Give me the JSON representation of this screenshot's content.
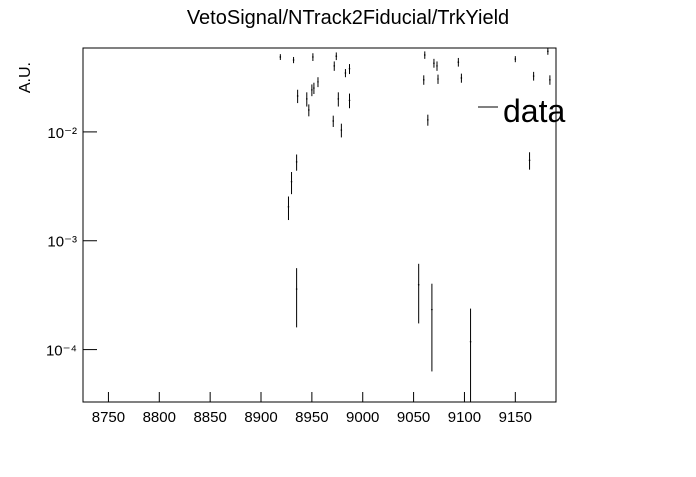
{
  "chart_data": {
    "type": "scatter",
    "title": "VetoSignal/NTrack2Fiducial/TrkYield",
    "y_label": "A.U.",
    "log_y": true,
    "legend_position": "upper right",
    "xlim": [
      8725,
      9190
    ],
    "xticks": [
      8750,
      8800,
      8850,
      8900,
      8950,
      9000,
      9050,
      9100,
      9150
    ],
    "ylim": [
      3.3e-05,
      0.059
    ],
    "yticks": [
      {
        "value": 0.0001,
        "label": "10⁻⁴"
      },
      {
        "value": 0.001,
        "label": "10⁻³"
      },
      {
        "value": 0.01,
        "label": "10⁻²"
      }
    ],
    "series": [
      {
        "name": "data",
        "color": "#000000",
        "x": [
          8919,
          8932,
          8927,
          8930,
          8935,
          8935,
          8936,
          8945,
          8947,
          8950,
          8952,
          8951,
          8956,
          8971,
          8972,
          8974,
          8976,
          8979,
          8983,
          8987,
          8987,
          9055,
          9060,
          9061,
          9064,
          9068,
          9070,
          9073,
          9074,
          9094,
          9097,
          9106,
          9150,
          9164,
          9168,
          9182,
          9184
        ],
        "values": [
          0.0488,
          0.0458,
          0.00205,
          0.00348,
          0.0053,
          0.00036,
          0.0214,
          0.0201,
          0.0159,
          0.0243,
          0.0253,
          0.0488,
          0.0288,
          0.0126,
          0.0404,
          0.0497,
          0.0201,
          0.0104,
          0.0348,
          0.038,
          0.0195,
          0.000394,
          0.0301,
          0.0509,
          0.0129,
          0.000233,
          0.0429,
          0.0404,
          0.0306,
          0.0438,
          0.0313,
          0.000118,
          0.0467,
          0.0055,
          0.0326,
          0.0551,
          0.0301
        ],
        "errors": [
          0.003,
          0.003,
          0.0005,
          0.0008,
          0.0009,
          0.0002,
          0.003,
          0.003,
          0.002,
          0.003,
          0.003,
          0.004,
          0.003,
          0.0015,
          0.004,
          0.004,
          0.003,
          0.0015,
          0.003,
          0.004,
          0.003,
          0.00022,
          0.003,
          0.004,
          0.0015,
          0.00017,
          0.004,
          0.004,
          0.003,
          0.004,
          0.003,
          0.00012,
          0.003,
          0.001,
          0.003,
          0.004,
          0.003
        ]
      }
    ]
  }
}
